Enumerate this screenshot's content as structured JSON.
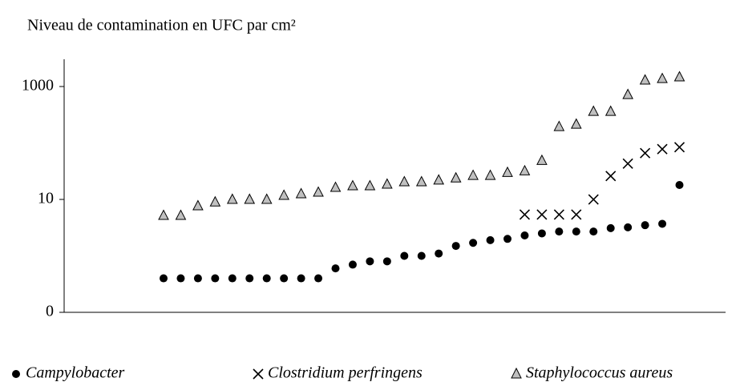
{
  "chart_data": {
    "type": "scatter",
    "title": "Niveau de contamination en UFC par cm²",
    "categories": [
      null,
      null,
      null,
      null,
      null,
      null,
      null,
      null,
      null,
      null,
      null,
      null,
      null,
      null,
      null,
      null,
      null,
      null,
      null,
      null,
      null,
      null,
      null,
      null,
      null,
      null,
      null,
      null,
      null,
      null,
      null
    ],
    "series": [
      {
        "name": "Campylobacter",
        "color": "#000000",
        "marker": "circle",
        "values": [
          0.4,
          0.4,
          0.4,
          0.4,
          0.4,
          0.4,
          0.4,
          0.4,
          0.4,
          0.4,
          0.6,
          0.7,
          0.8,
          0.8,
          1,
          1,
          1.1,
          1.5,
          1.7,
          1.9,
          2,
          2.3,
          2.5,
          2.7,
          2.7,
          2.7,
          3.1,
          3.2,
          3.5,
          3.7,
          18
        ]
      },
      {
        "name": "Clostridium perfringens",
        "color": "#000000",
        "marker": "x",
        "values": [
          null,
          null,
          null,
          null,
          null,
          null,
          null,
          null,
          null,
          null,
          null,
          null,
          null,
          null,
          null,
          null,
          null,
          null,
          null,
          null,
          null,
          5.4,
          5.4,
          5.4,
          5.4,
          10,
          26,
          43,
          66,
          78,
          84
        ]
      },
      {
        "name": "Staphylococcus aureus",
        "color": "#c0c0c0",
        "marker": "triangle",
        "values": [
          5.2,
          5.2,
          7.7,
          9,
          10,
          10,
          10,
          11.8,
          12.6,
          13.4,
          16.3,
          17.4,
          17.4,
          18.6,
          20.5,
          20.5,
          22,
          24,
          26.6,
          26.6,
          30,
          32,
          49,
          195,
          215,
          362,
          362,
          720,
          1300,
          1380,
          1480
        ]
      }
    ],
    "log_scale": true,
    "ylim": [
      0.1,
      3000
    ],
    "yticks": [
      {
        "value": 0.1,
        "label": "0"
      },
      10,
      1000
    ]
  }
}
